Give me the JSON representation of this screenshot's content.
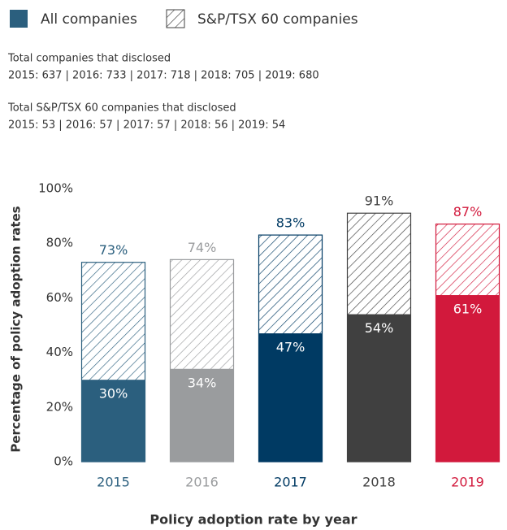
{
  "chart_data": {
    "type": "bar",
    "overlap": true,
    "notes": [
      [
        "Total companies that disclosed",
        "2015: 637 | 2016: 733 | 2017: 718 | 2018: 705 | 2019: 680"
      ],
      [
        "Total S&P/TSX 60 companies that disclosed",
        "2015: 53 | 2016: 57 | 2017: 57 | 2018: 56 | 2019: 54"
      ]
    ],
    "ylabel": "Percentage of policy adoption rates",
    "xlabel": "Policy adoption rate by year",
    "categories": [
      "2015",
      "2016",
      "2017",
      "2018",
      "2019"
    ],
    "category_colors": [
      "#2b5f7e",
      "#9a9c9e",
      "#003a63",
      "#404040",
      "#d2193c"
    ],
    "series": [
      {
        "name": "All companies",
        "color": "#2b5f7e",
        "hatch": false,
        "values": [
          30,
          34,
          47,
          54,
          61
        ],
        "value_labels": [
          "30%",
          "34%",
          "47%",
          "54%",
          "61%"
        ]
      },
      {
        "name": "S&P/TSX 60 companies",
        "color": "#404040",
        "hatch": true,
        "values": [
          73,
          74,
          83,
          91,
          87
        ],
        "value_labels": [
          "73%",
          "74%",
          "83%",
          "91%",
          "87%"
        ]
      }
    ],
    "ylim": [
      0,
      100
    ],
    "yticks": [
      {
        "value": 0,
        "label": "0%"
      },
      {
        "value": 20,
        "label": "20%"
      },
      {
        "value": 40,
        "label": "40%"
      },
      {
        "value": 60,
        "label": "60%"
      },
      {
        "value": 80,
        "label": "80%"
      },
      {
        "value": 100,
        "label": "100%"
      }
    ],
    "grid": false
  }
}
